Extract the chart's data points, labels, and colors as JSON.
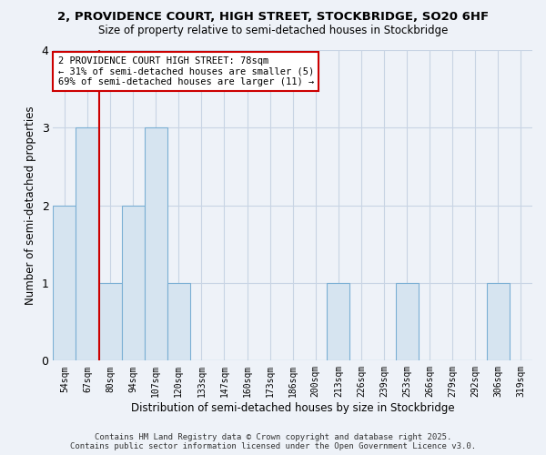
{
  "title_line1": "2, PROVIDENCE COURT, HIGH STREET, STOCKBRIDGE, SO20 6HF",
  "title_line2": "Size of property relative to semi-detached houses in Stockbridge",
  "xlabel": "Distribution of semi-detached houses by size in Stockbridge",
  "ylabel": "Number of semi-detached properties",
  "annotation_line1": "2 PROVIDENCE COURT HIGH STREET: 78sqm",
  "annotation_line2": "← 31% of semi-detached houses are smaller (5)",
  "annotation_line3": "69% of semi-detached houses are larger (11) →",
  "bin_labels": [
    "54sqm",
    "67sqm",
    "80sqm",
    "94sqm",
    "107sqm",
    "120sqm",
    "133sqm",
    "147sqm",
    "160sqm",
    "173sqm",
    "186sqm",
    "200sqm",
    "213sqm",
    "226sqm",
    "239sqm",
    "253sqm",
    "266sqm",
    "279sqm",
    "292sqm",
    "306sqm",
    "319sqm"
  ],
  "bin_counts": [
    2,
    3,
    1,
    2,
    3,
    1,
    0,
    0,
    0,
    0,
    0,
    0,
    1,
    0,
    0,
    1,
    0,
    0,
    0,
    1,
    0
  ],
  "bar_color": "#d6e4f0",
  "bar_edge_color": "#7bafd4",
  "subject_line_index": 2,
  "subject_line_color": "#cc0000",
  "ylim": [
    0,
    4
  ],
  "yticks": [
    0,
    1,
    2,
    3,
    4
  ],
  "background_color": "#eef2f8",
  "grid_color": "#c8d4e4",
  "footer_line1": "Contains HM Land Registry data © Crown copyright and database right 2025.",
  "footer_line2": "Contains public sector information licensed under the Open Government Licence v3.0."
}
